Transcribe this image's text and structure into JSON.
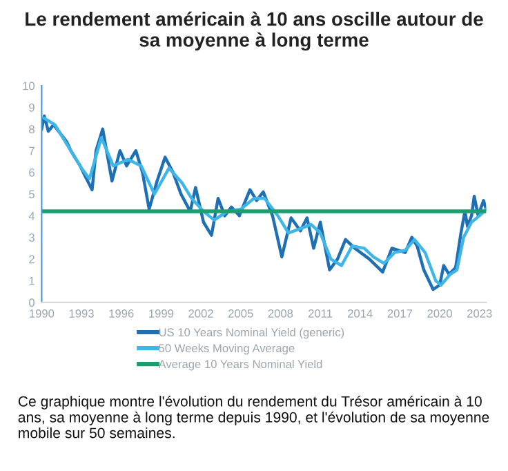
{
  "chart_data": {
    "type": "line",
    "title": "Le rendement américain à 10 ans oscille autour de\nsa moyenne à long terme",
    "xlim": [
      1990,
      2023.5
    ],
    "xticks": [
      1990,
      1993,
      1996,
      1999,
      2002,
      2005,
      2008,
      2011,
      2014,
      2017,
      2020,
      2023
    ],
    "ylim": [
      0,
      10
    ],
    "yticks": [
      0,
      1,
      2,
      3,
      4,
      5,
      6,
      7,
      8,
      9,
      10
    ],
    "grid": false,
    "legend": "bottom",
    "series": [
      {
        "name": "US 10 Years Nominal Yield (generic)",
        "color": "#1f6fb5",
        "x": [
          1990.0,
          1990.2,
          1990.5,
          1990.9,
          1991.4,
          1991.9,
          1992.2,
          1992.6,
          1992.9,
          1993.3,
          1993.8,
          1994.1,
          1994.6,
          1995.3,
          1995.9,
          1996.4,
          1997.1,
          1997.6,
          1998.1,
          1998.7,
          1999.3,
          1999.9,
          2000.5,
          2001.2,
          2001.6,
          2002.2,
          2002.8,
          2003.3,
          2003.8,
          2004.3,
          2004.9,
          2005.7,
          2006.2,
          2006.7,
          2007.4,
          2008.1,
          2008.8,
          2009.5,
          2010.0,
          2010.5,
          2011.0,
          2011.7,
          2012.3,
          2012.9,
          2013.6,
          2014.7,
          2015.7,
          2016.4,
          2017.4,
          2017.9,
          2018.3,
          2018.8,
          2019.5,
          2020.0,
          2020.3,
          2020.7,
          2021.2,
          2021.6,
          2021.9,
          2022.1,
          2022.4,
          2022.6,
          2022.9,
          2023.3,
          2023.5
        ],
        "values": [
          8.0,
          8.6,
          7.9,
          8.2,
          7.8,
          7.4,
          7.0,
          6.6,
          6.3,
          5.8,
          5.2,
          7.0,
          8.0,
          5.6,
          7.0,
          6.3,
          7.0,
          6.0,
          4.3,
          5.6,
          6.7,
          6.0,
          5.0,
          4.2,
          5.3,
          3.7,
          3.1,
          4.8,
          4.0,
          4.4,
          4.0,
          5.2,
          4.7,
          5.1,
          4.0,
          2.1,
          3.9,
          3.3,
          3.9,
          2.5,
          3.7,
          1.5,
          2.0,
          2.9,
          2.5,
          2.0,
          1.4,
          2.5,
          2.3,
          3.0,
          2.6,
          1.5,
          0.6,
          0.8,
          1.7,
          1.3,
          1.6,
          3.2,
          4.2,
          3.5,
          4.0,
          4.9,
          4.0,
          4.7,
          4.3
        ]
      },
      {
        "name": "50 Weeks Moving Average",
        "color": "#3fb6e8",
        "x": [
          1990.2,
          1991.0,
          1992.0,
          1993.0,
          1993.6,
          1994.5,
          1995.4,
          1996.5,
          1997.5,
          1998.5,
          1999.6,
          2000.6,
          2001.3,
          2002.2,
          2003.0,
          2004.0,
          2005.0,
          2006.0,
          2006.8,
          2007.8,
          2008.6,
          2009.5,
          2010.3,
          2011.0,
          2011.8,
          2012.6,
          2013.4,
          2014.3,
          2015.0,
          2015.8,
          2016.6,
          2017.4,
          2018.1,
          2018.9,
          2019.7,
          2020.1,
          2020.8,
          2021.3,
          2021.8,
          2022.4,
          2023.0,
          2023.5
        ],
        "values": [
          8.5,
          8.2,
          7.2,
          6.2,
          5.7,
          7.6,
          6.3,
          6.6,
          6.3,
          5.0,
          6.2,
          5.5,
          4.8,
          4.2,
          3.8,
          4.2,
          4.3,
          4.8,
          4.8,
          4.0,
          3.2,
          3.4,
          3.6,
          3.2,
          2.0,
          1.7,
          2.6,
          2.5,
          2.1,
          1.8,
          2.3,
          2.4,
          2.9,
          2.3,
          1.0,
          0.8,
          1.3,
          1.5,
          3.0,
          3.7,
          4.0,
          4.3
        ]
      },
      {
        "name": "Average 10 Years Nominal Yield",
        "color": "#1a9e6e",
        "x": [
          1990,
          2023.5
        ],
        "values": [
          4.2,
          4.2
        ]
      }
    ],
    "annotations": [
      "Ce graphique montre l'évolution du rendement du Trésor américain à 10 ans, sa moyenne à long terme depuis 1990, et l'évolution de sa moyenne mobile sur 50 semaines."
    ]
  }
}
